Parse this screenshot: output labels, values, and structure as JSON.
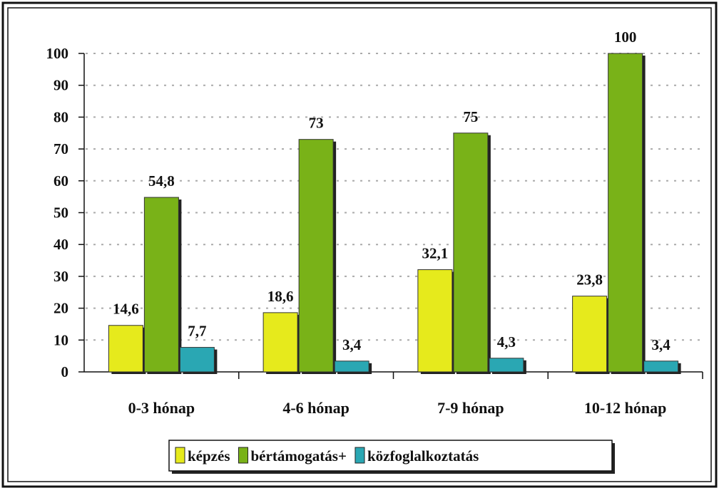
{
  "chart_data": {
    "type": "bar",
    "categories": [
      "0-3 hónap",
      "4-6 hónap",
      "7-9 hónap",
      "10-12 hónap"
    ],
    "series": [
      {
        "name": "képzés",
        "color": "#e6ea1c",
        "values": [
          14.6,
          18.6,
          32.1,
          23.8
        ],
        "value_labels": [
          "14,6",
          "18,6",
          "32,1",
          "23,8"
        ]
      },
      {
        "name": "bértámogatás+",
        "color": "#79b218",
        "values": [
          54.8,
          73,
          75,
          100
        ],
        "value_labels": [
          "54,8",
          "73",
          "75",
          "100"
        ]
      },
      {
        "name": "közfoglalkoztatás",
        "color": "#2aa7b3",
        "values": [
          7.7,
          3.4,
          4.3,
          3.4
        ],
        "value_labels": [
          "7,7",
          "3,4",
          "4,3",
          "3,4"
        ]
      }
    ],
    "ylim": [
      0,
      100
    ],
    "yticks": [
      0,
      10,
      20,
      30,
      40,
      50,
      60,
      70,
      80,
      90,
      100
    ],
    "grid": true,
    "legend": "bottom"
  }
}
